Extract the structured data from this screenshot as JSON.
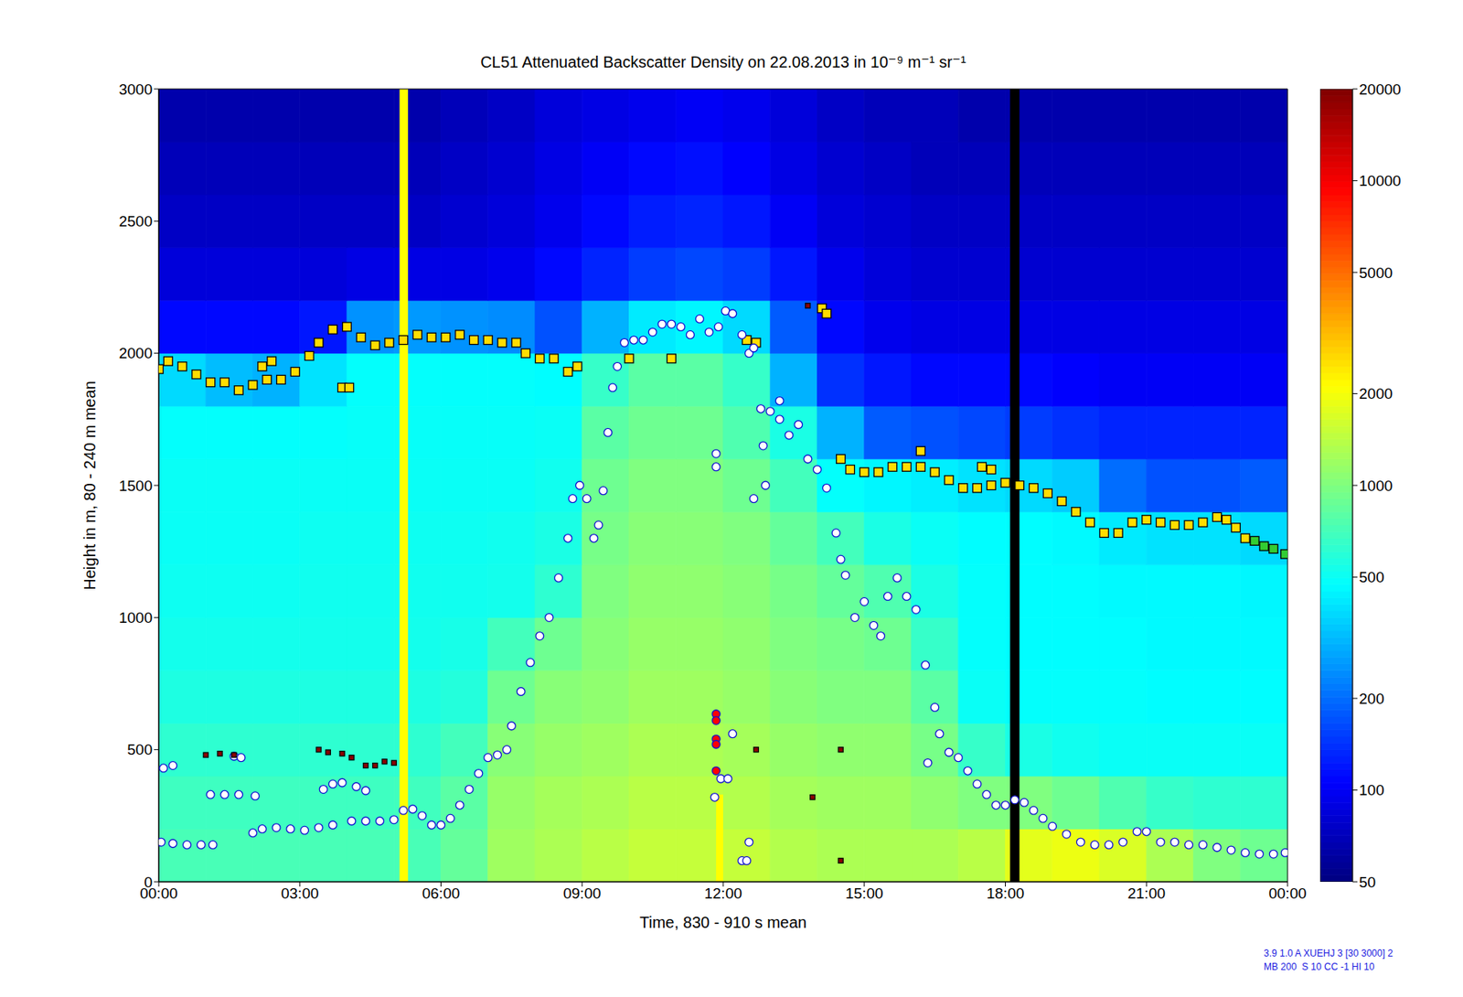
{
  "chart_data": {
    "type": "heatmap",
    "title": "CL51 Attenuated Backscatter Density on 22.08.2013 in 10⁻⁹ m⁻¹ sr⁻¹",
    "x_label": "Time, 830 - 910 s mean",
    "y_label": "Height in m, 80 - 240 m mean",
    "xlim": [
      0,
      24
    ],
    "xticks": [
      {
        "value": 0,
        "label": "00:00"
      },
      {
        "value": 3,
        "label": "03:00"
      },
      {
        "value": 6,
        "label": "06:00"
      },
      {
        "value": 9,
        "label": "09:00"
      },
      {
        "value": 12,
        "label": "12:00"
      },
      {
        "value": 15,
        "label": "15:00"
      },
      {
        "value": 18,
        "label": "18:00"
      },
      {
        "value": 21,
        "label": "21:00"
      },
      {
        "value": 24,
        "label": "00:00"
      }
    ],
    "ylim": [
      0,
      3000
    ],
    "yticks": [
      0,
      500,
      1000,
      1500,
      2000,
      2500,
      3000
    ],
    "grid": false,
    "heatmap": {
      "x_edges": [
        0,
        1,
        2,
        3,
        4,
        5,
        6,
        7,
        8,
        9,
        10,
        11,
        12,
        13,
        14,
        15,
        16,
        17,
        18,
        19,
        20,
        21,
        22,
        23,
        24
      ],
      "y_edges": [
        0,
        200,
        400,
        600,
        800,
        1000,
        1200,
        1400,
        1600,
        1800,
        2000,
        2200,
        2400,
        2600,
        2800,
        3000
      ],
      "cells": [
        [
          720,
          720,
          720,
          720,
          720,
          720,
          850,
          1200,
          1300,
          1400,
          1500,
          1500,
          1500,
          1350,
          1300,
          1300,
          1300,
          1400,
          1800,
          1900,
          1700,
          1300,
          1000,
          900
        ],
        [
          680,
          680,
          680,
          680,
          680,
          690,
          800,
          1150,
          1250,
          1300,
          1400,
          1400,
          1350,
          1250,
          1200,
          1200,
          1100,
          1000,
          1000,
          900,
          750,
          650,
          620,
          620
        ],
        [
          620,
          620,
          620,
          620,
          620,
          620,
          700,
          1050,
          1150,
          1200,
          1300,
          1300,
          1250,
          1150,
          1100,
          1100,
          950,
          650,
          550,
          520,
          500,
          500,
          500,
          500
        ],
        [
          560,
          560,
          560,
          560,
          560,
          560,
          580,
          900,
          1050,
          1100,
          1200,
          1200,
          1150,
          1050,
          1000,
          1000,
          800,
          500,
          480,
          480,
          480,
          470,
          470,
          470
        ],
        [
          530,
          530,
          530,
          530,
          530,
          530,
          540,
          700,
          900,
          1050,
          1150,
          1150,
          1100,
          1000,
          950,
          900,
          650,
          480,
          470,
          470,
          470,
          460,
          460,
          460
        ],
        [
          510,
          510,
          510,
          520,
          520,
          520,
          520,
          530,
          620,
          1000,
          1100,
          1100,
          1050,
          950,
          850,
          750,
          550,
          480,
          470,
          470,
          460,
          460,
          460,
          450
        ],
        [
          500,
          500,
          500,
          510,
          510,
          510,
          510,
          520,
          550,
          950,
          1050,
          1050,
          1000,
          850,
          700,
          550,
          500,
          470,
          470,
          460,
          420,
          400,
          400,
          380
        ],
        [
          500,
          500,
          500,
          500,
          500,
          500,
          500,
          500,
          520,
          900,
          1000,
          1000,
          900,
          700,
          480,
          450,
          430,
          400,
          380,
          350,
          200,
          170,
          170,
          180
        ],
        [
          480,
          480,
          480,
          480,
          490,
          490,
          490,
          490,
          500,
          800,
          900,
          900,
          750,
          550,
          300,
          180,
          170,
          160,
          150,
          140,
          130,
          130,
          130,
          130
        ],
        [
          380,
          320,
          300,
          400,
          480,
          480,
          480,
          480,
          470,
          650,
          800,
          800,
          650,
          300,
          140,
          120,
          110,
          110,
          110,
          105,
          100,
          100,
          100,
          100
        ],
        [
          110,
          110,
          110,
          120,
          250,
          260,
          250,
          240,
          170,
          300,
          420,
          450,
          380,
          180,
          110,
          95,
          90,
          90,
          90,
          90,
          90,
          90,
          90,
          90
        ],
        [
          85,
          85,
          85,
          85,
          90,
          90,
          90,
          95,
          110,
          130,
          150,
          160,
          150,
          120,
          95,
          85,
          80,
          80,
          80,
          80,
          80,
          80,
          80,
          80
        ],
        [
          75,
          75,
          75,
          75,
          75,
          75,
          80,
          85,
          95,
          110,
          125,
          130,
          120,
          100,
          85,
          80,
          75,
          75,
          75,
          75,
          75,
          75,
          75,
          75
        ],
        [
          70,
          70,
          70,
          70,
          70,
          70,
          75,
          80,
          90,
          100,
          110,
          115,
          105,
          90,
          80,
          75,
          70,
          70,
          70,
          70,
          70,
          70,
          70,
          70
        ],
        [
          65,
          65,
          65,
          65,
          65,
          65,
          70,
          75,
          85,
          90,
          95,
          100,
          95,
          85,
          75,
          70,
          70,
          65,
          65,
          65,
          65,
          65,
          65,
          65
        ]
      ],
      "colorbar": {
        "range": [
          50,
          20000
        ],
        "ticks": [
          50,
          100,
          200,
          500,
          1000,
          2000,
          5000,
          10000,
          20000
        ],
        "log": true
      }
    },
    "bands": [
      {
        "x1": 5.12,
        "x2": 5.3,
        "y1": 0,
        "y2": 3000,
        "color": "#ffff00"
      },
      {
        "x1": 18.1,
        "x2": 18.3,
        "y1": 0,
        "y2": 3000,
        "color": "#000000"
      },
      {
        "x1": 11.85,
        "x2": 12.0,
        "y1": 0,
        "y2": 330,
        "color": "#ffff00"
      }
    ],
    "series": [
      {
        "type": "scatter",
        "marker": "square",
        "color": "#ffdd00",
        "x": [
          0.0,
          0.2,
          0.5,
          0.8,
          1.1,
          1.4,
          1.7,
          2.0,
          2.3,
          2.6,
          2.9,
          3.2,
          3.4,
          3.7,
          4.0,
          4.3,
          4.6,
          4.9,
          5.2,
          5.5,
          5.8,
          6.1,
          6.4,
          6.7,
          7.0,
          7.3,
          7.6,
          7.8,
          8.1,
          8.4,
          2.2,
          2.4,
          3.9,
          4.05,
          8.7,
          8.9,
          10.0,
          10.9,
          12.5,
          12.7,
          14.1,
          14.2,
          14.5,
          14.7,
          15.0,
          15.3,
          15.6,
          15.9,
          16.2,
          16.5,
          16.8,
          17.1,
          17.4,
          17.7,
          18.0,
          18.3,
          18.6,
          18.9,
          19.2,
          19.5,
          19.8,
          20.1,
          20.4,
          20.7,
          21.0,
          21.3,
          21.6,
          21.9,
          22.2,
          22.5,
          22.7,
          22.9,
          23.1,
          16.2,
          17.5,
          17.7
        ],
        "values": [
          1940,
          1970,
          1950,
          1920,
          1890,
          1890,
          1860,
          1880,
          1900,
          1900,
          1930,
          1990,
          2040,
          2090,
          2100,
          2060,
          2030,
          2040,
          2050,
          2070,
          2060,
          2060,
          2070,
          2050,
          2050,
          2040,
          2040,
          2000,
          1980,
          1980,
          1950,
          1970,
          1870,
          1870,
          1930,
          1950,
          1980,
          1980,
          2050,
          2040,
          2170,
          2150,
          1600,
          1560,
          1550,
          1550,
          1570,
          1570,
          1570,
          1550,
          1520,
          1490,
          1490,
          1500,
          1510,
          1500,
          1490,
          1470,
          1440,
          1400,
          1360,
          1320,
          1320,
          1360,
          1370,
          1360,
          1350,
          1350,
          1360,
          1380,
          1370,
          1340,
          1300,
          1630,
          1570,
          1560
        ]
      },
      {
        "type": "scatter",
        "marker": "square",
        "color": "#33cc33",
        "x": [
          23.3,
          23.5,
          23.7,
          23.95
        ],
        "values": [
          1290,
          1270,
          1260,
          1240
        ]
      },
      {
        "type": "scatter",
        "marker": "circle",
        "color": "#ffffff",
        "x": [
          0.05,
          0.3,
          0.6,
          0.9,
          1.15,
          2.0,
          2.2,
          2.5,
          2.8,
          3.1,
          3.4,
          3.7,
          4.1,
          4.4,
          4.7,
          5.0,
          5.2,
          5.4,
          5.6,
          5.8,
          6.0,
          6.2,
          6.4,
          6.6,
          6.8,
          7.0,
          7.2,
          7.4,
          7.5,
          7.7,
          7.9,
          8.1,
          8.3,
          8.5,
          8.7,
          8.8,
          8.95,
          9.1,
          9.25,
          9.35,
          9.45,
          9.55,
          9.65,
          9.75,
          9.9,
          10.1,
          10.3,
          10.5,
          10.7,
          10.9,
          11.1,
          11.3,
          11.5,
          11.7,
          11.9,
          12.05,
          12.2,
          12.4,
          12.55,
          12.65,
          12.8,
          13.0,
          13.2,
          13.4,
          13.6,
          13.8,
          14.0,
          14.2,
          14.4,
          14.5,
          14.6,
          14.8,
          15.0,
          15.2,
          15.35,
          15.5,
          15.7,
          15.9,
          16.1,
          16.3,
          16.5,
          16.6,
          16.8,
          17.0,
          17.2,
          17.4,
          17.6,
          17.8,
          18.0,
          18.2,
          18.4,
          18.6,
          18.8,
          19.0,
          19.3,
          19.6,
          19.9,
          20.2,
          20.5,
          20.8,
          21.0,
          21.3,
          21.6,
          21.9,
          22.2,
          22.5,
          22.8,
          23.1,
          23.4,
          23.7,
          23.95,
          0.1,
          0.3,
          1.1,
          1.4,
          1.7,
          1.6,
          1.75,
          2.05,
          3.5,
          3.7,
          3.9,
          4.2,
          4.4,
          11.82,
          11.95,
          12.1,
          12.2,
          12.4,
          12.5,
          12.55,
          11.85,
          11.85,
          12.65,
          12.9,
          12.85,
          13.2,
          16.35
        ],
        "values": [
          150,
          145,
          140,
          140,
          140,
          185,
          200,
          205,
          200,
          195,
          205,
          215,
          230,
          230,
          230,
          235,
          270,
          275,
          250,
          215,
          215,
          240,
          290,
          350,
          410,
          470,
          480,
          500,
          590,
          720,
          830,
          930,
          1000,
          1150,
          1300,
          1450,
          1500,
          1450,
          1300,
          1350,
          1480,
          1700,
          1870,
          1950,
          2040,
          2050,
          2050,
          2080,
          2110,
          2110,
          2100,
          2070,
          2130,
          2080,
          2100,
          2160,
          2150,
          2070,
          2000,
          2020,
          1790,
          1780,
          1750,
          1690,
          1730,
          1600,
          1560,
          1490,
          1320,
          1220,
          1160,
          1000,
          1060,
          970,
          930,
          1080,
          1150,
          1080,
          1030,
          820,
          660,
          560,
          490,
          470,
          420,
          370,
          330,
          290,
          290,
          310,
          300,
          270,
          240,
          210,
          180,
          150,
          140,
          140,
          150,
          190,
          190,
          150,
          150,
          140,
          140,
          130,
          120,
          110,
          105,
          105,
          110,
          430,
          440,
          330,
          330,
          330,
          475,
          470,
          325,
          350,
          370,
          375,
          360,
          345,
          320,
          390,
          390,
          560,
          80,
          80,
          150,
          1620,
          1570,
          1450,
          1500,
          1650,
          1820,
          450
        ]
      },
      {
        "type": "scatter",
        "marker": "circle",
        "color": "#ff0000",
        "x": [
          11.85,
          11.85,
          11.85,
          11.85,
          11.85
        ],
        "values": [
          635,
          610,
          540,
          520,
          420
        ]
      },
      {
        "type": "scatter",
        "marker": "small_square",
        "color": "#8b0000",
        "x": [
          1.0,
          1.3,
          1.6,
          3.4,
          3.6,
          3.9,
          4.1,
          4.4,
          4.6,
          4.8,
          5.0,
          12.7,
          13.9,
          14.5,
          14.5,
          13.8
        ],
        "values": [
          480,
          485,
          480,
          500,
          490,
          485,
          470,
          440,
          440,
          455,
          450,
          500,
          320,
          500,
          80,
          2180
        ]
      }
    ],
    "annotations": [
      "3.9 1.0 A XUEHJ 3 [30 3000] 2",
      "MB 200  S 10 CC -1 HI 10"
    ]
  }
}
